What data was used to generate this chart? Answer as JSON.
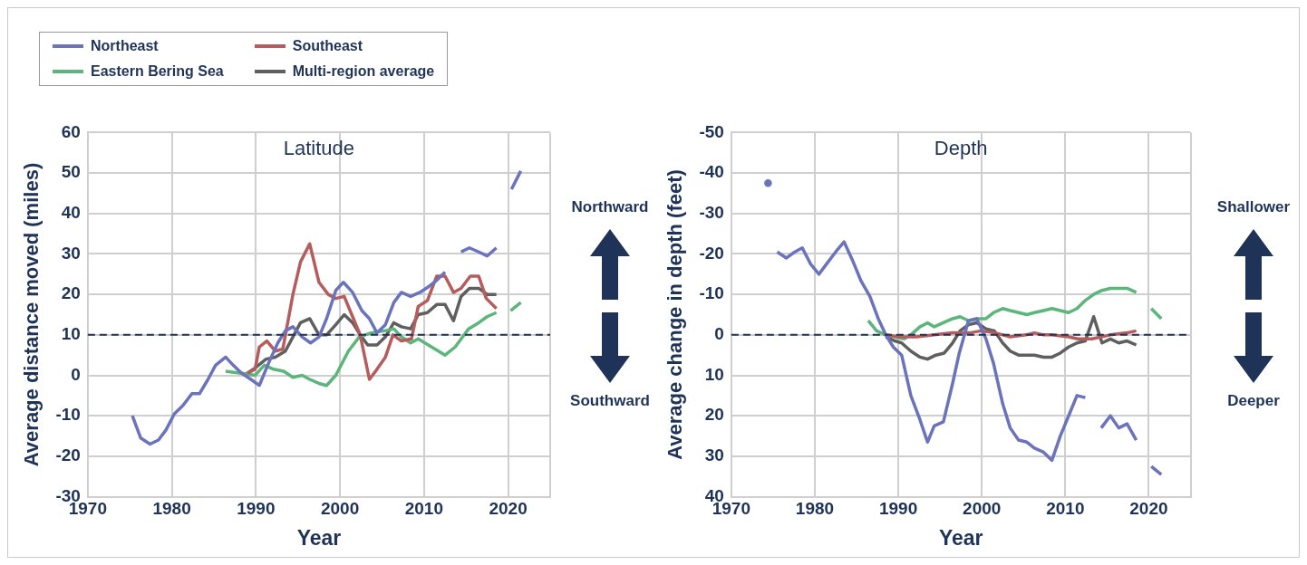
{
  "chart_data": [
    {
      "type": "line",
      "title": "Latitude",
      "xlabel": "Year",
      "ylabel": "Average distance moved (miles)",
      "xlim": [
        1970,
        2025
      ],
      "xticks": [
        1970,
        1980,
        1990,
        2000,
        2010,
        2020,
        {
          "value": 2025,
          "label": null
        }
      ],
      "ylim": [
        -30,
        60
      ],
      "yticks": [
        -30,
        -20,
        -10,
        0,
        10,
        20,
        30,
        40,
        50,
        60
      ],
      "grid": true,
      "legend": "top left",
      "marker": "none",
      "annotations": [
        "Northward",
        "Southward"
      ],
      "ref_lines": [
        {
          "axis": "y",
          "value": 10,
          "label": null,
          "color": "#1f3358",
          "line_style": "dashed"
        }
      ],
      "series": [
        {
          "name": "Northeast",
          "color": "#6a73bc",
          "x": [
            1975.3,
            1976.3,
            1977.4,
            1978.4,
            1979.3,
            1980.3,
            1981.3,
            1982.4,
            1983.3,
            1984.3,
            1985.2,
            1986.4,
            1987.3,
            1988.3,
            1989.4,
            1990.4,
            1991.5,
            1992.6,
            1993.5,
            1994.4,
            1995.5,
            1996.5,
            1997.5,
            1998.4,
            1999.5,
            2000.4,
            2001.5,
            2002.6,
            2003.5,
            2004.4,
            2005.4,
            2006.4,
            2007.3,
            2008.4,
            2009.5,
            2010.6,
            2011.5,
            2012.5,
            2013.5,
            2014.4,
            2015.4,
            2016.5,
            2017.5,
            2018.6,
            2019.5,
            2020.4,
            2021.5
          ],
          "values": [
            -10,
            -15.5,
            -17,
            -16,
            -13.5,
            -9.5,
            -7.5,
            -4.5,
            -4.5,
            -1,
            2.5,
            4.5,
            2.5,
            0.5,
            -1,
            -2.5,
            3,
            8,
            11,
            12,
            9.5,
            8,
            9.5,
            14,
            21,
            23,
            20.5,
            16,
            14,
            10.5,
            12.5,
            18,
            20.5,
            19.5,
            20.5,
            22,
            23.5,
            25.5,
            null,
            30.5,
            31.5,
            30.5,
            29.5,
            31.5,
            null,
            46,
            50.5
          ]
        },
        {
          "name": "Southeast",
          "color": "#b65c5c",
          "x": [
            1989,
            1989.9,
            1990.4,
            1991.3,
            1992.3,
            1993.2,
            1994.4,
            1995.3,
            1996.4,
            1997.5,
            1998.6,
            1999.5,
            2000.5,
            2001.5,
            2002.4,
            2003.5,
            2004.4,
            2005.4,
            2006.3,
            2007.3,
            2008.5,
            2009.3,
            2010.4,
            2011.5,
            2012.5,
            2013.5,
            2014.4,
            2015.5,
            2016.5,
            2017.4,
            2018.6
          ],
          "values": [
            0.5,
            1.5,
            7,
            8.5,
            6,
            6.5,
            20,
            28,
            32.5,
            23,
            20,
            19,
            19.5,
            14.5,
            10,
            -1,
            1.5,
            4.5,
            10,
            8.5,
            9,
            17,
            18.5,
            24.5,
            24.5,
            20.5,
            21.5,
            24.5,
            24.5,
            19,
            16.5
          ]
        },
        {
          "name": "Eastern Bering Sea",
          "color": "#5cb57a",
          "x": [
            1986.4,
            1988.3,
            1989.9,
            1991,
            1992.1,
            1993.3,
            1994.4,
            1995.5,
            1996.4,
            1997.5,
            1998.4,
            1999.5,
            2001,
            2002.3,
            2003.7,
            2005.3,
            2006.4,
            2007.3,
            2008.4,
            2009.3,
            2012.5,
            2013.7,
            2015.3,
            2016.5,
            2017.5,
            2018.6,
            2019.5,
            2020.3,
            2021.5
          ],
          "values": [
            1,
            0.5,
            0,
            2.5,
            1.5,
            1,
            -0.5,
            0,
            -1,
            -2,
            -2.5,
            0,
            6,
            9.5,
            10.5,
            11,
            11.5,
            9.5,
            8,
            9,
            5,
            7,
            11.5,
            13,
            14.5,
            15.5,
            null,
            16,
            18
          ]
        },
        {
          "name": "Multi-region average",
          "color": "#5f5f5f",
          "x": [
            1988.6,
            1989.7,
            1991.2,
            1992.3,
            1993.5,
            1994.4,
            1995.3,
            1996.4,
            1997.5,
            1998.4,
            1999.5,
            2000.5,
            2001.5,
            2002.4,
            2003.3,
            2004.4,
            2005.4,
            2006.4,
            2007.3,
            2008.4,
            2009.3,
            2010.4,
            2011.5,
            2012.5,
            2013.5,
            2014.4,
            2015.4,
            2016.5,
            2017.5,
            2018.6
          ],
          "values": [
            0,
            1.5,
            4,
            4.5,
            6,
            9.5,
            13,
            14,
            10,
            10,
            12.5,
            15,
            13,
            10,
            7.5,
            7.5,
            9.5,
            13,
            12,
            11.5,
            15,
            15.5,
            17.5,
            17.5,
            13.5,
            19.5,
            21.5,
            21.5,
            20,
            20
          ]
        }
      ]
    },
    {
      "type": "line",
      "title": "Depth",
      "xlabel": "Year",
      "ylabel": "Average change in depth (feet)",
      "xlim": [
        1970,
        2025
      ],
      "xticks": [
        1970,
        1980,
        1990,
        2000,
        2010,
        2020,
        {
          "value": 2025,
          "label": null
        }
      ],
      "ylim": [
        40,
        -50
      ],
      "yticks": [
        -50,
        -40,
        -30,
        -20,
        -10,
        0,
        10,
        20,
        30,
        40
      ],
      "grid": true,
      "marker": "none",
      "annotations": [
        "Shallower",
        "Deeper"
      ],
      "ref_lines": [
        {
          "axis": "y",
          "value": 0,
          "label": null,
          "color": "#1f3358",
          "line_style": "dashed"
        }
      ],
      "series": [
        {
          "color": "#6a73bc",
          "x": [
            1974.4,
            1975,
            1975.5,
            1976.6,
            1977.6,
            1978.5,
            1979.5,
            1980.5,
            1981.4,
            1982.5,
            1983.5,
            1984.5,
            1985.5,
            1986.6,
            1987.6,
            1988.5,
            1989.4,
            1990.4,
            1991.5,
            1992.6,
            1993.5,
            1994.3,
            1995.4,
            1996.5,
            1997.3,
            1998.4,
            1999.4,
            2000.5,
            2001.4,
            2002.5,
            2003.4,
            2004.4,
            2005.4,
            2006.3,
            2007.4,
            2008.4,
            2009.4,
            2010.4,
            2011.4,
            2012.4,
            2013.4,
            2014.3,
            2015.4,
            2016.4,
            2017.4,
            2018.5,
            2019.4,
            2020.3,
            2021.5
          ],
          "values": [
            -37.5,
            null,
            -20.5,
            -19,
            -20.5,
            -21.5,
            -17.5,
            -15,
            -17.5,
            -20.5,
            -23,
            -18.5,
            -13.5,
            -9.5,
            -4,
            0,
            3,
            5,
            15,
            21,
            26.5,
            22.5,
            21.5,
            12,
            4.5,
            -3.5,
            -4,
            1,
            7,
            17,
            23,
            26,
            26.5,
            28,
            29,
            31,
            25,
            20,
            15,
            15.5,
            null,
            23,
            20,
            23,
            22,
            26,
            null,
            32.5,
            34.5
          ]
        },
        {
          "color": "#b65c5c",
          "x": [
            1988.5,
            1990,
            1992.2,
            1994.3,
            1996.5,
            1998.6,
            1999.9,
            2001.6,
            2003.4,
            2005.3,
            2006.3,
            2007.4,
            2008.4,
            2010.4,
            2011.5,
            2013.2,
            2015.4,
            2017.4,
            2018.5
          ],
          "values": [
            0,
            0.5,
            0.5,
            0,
            -0.5,
            -0.5,
            -1,
            -0.5,
            0.5,
            0,
            -0.5,
            0,
            0,
            0.5,
            1,
            1,
            0,
            -0.5,
            -1
          ]
        },
        {
          "color": "#5cb57a",
          "x": [
            1986.4,
            1987.4,
            1988.5,
            1989.6,
            1990.7,
            1991.5,
            1992.6,
            1993.5,
            1994.3,
            1995.4,
            1996.5,
            1997.4,
            1998.4,
            1999.4,
            2000.5,
            2001.4,
            2002.5,
            2003.4,
            2004.4,
            2005.4,
            2006.3,
            2007.4,
            2008.4,
            2009.4,
            2010.4,
            2011.4,
            2012.4,
            2013.4,
            2014.4,
            2015.4,
            2016.4,
            2017.4,
            2018.5,
            2019.4,
            2020.3,
            2021.5
          ],
          "values": [
            -3.5,
            -1,
            0,
            0.5,
            1,
            0,
            -2,
            -3,
            -2,
            -3,
            -4,
            -4.5,
            -3.5,
            -4,
            -4,
            -5.5,
            -6.5,
            -6,
            -5.5,
            -5,
            -5.5,
            -6,
            -6.5,
            -6,
            -5.5,
            -6.5,
            -8.5,
            -10,
            -11,
            -11.5,
            -11.5,
            -11.5,
            -10.5,
            null,
            -6.5,
            -4
          ]
        },
        {
          "color": "#5f5f5f",
          "x": [
            1988.5,
            1989.6,
            1990.4,
            1991.5,
            1992.6,
            1993.5,
            1994.5,
            1995.5,
            1996.5,
            1997.4,
            1998.4,
            1999.4,
            2000.5,
            2001.5,
            2002.5,
            2003.4,
            2004.4,
            2006.3,
            2007.4,
            2008.4,
            2009.4,
            2010.4,
            2011.4,
            2012.4,
            2013.4,
            2014.4,
            2015.4,
            2016.4,
            2017.4,
            2018.5
          ],
          "values": [
            0.5,
            1.5,
            2,
            4,
            5.5,
            6,
            5,
            4.5,
            2,
            -1,
            -2.5,
            -3,
            -1.5,
            -1,
            2,
            4,
            5,
            5,
            5.5,
            5.5,
            4.5,
            3,
            2,
            1.5,
            -4.5,
            2,
            1,
            2,
            1.5,
            2.5
          ]
        }
      ]
    }
  ]
}
